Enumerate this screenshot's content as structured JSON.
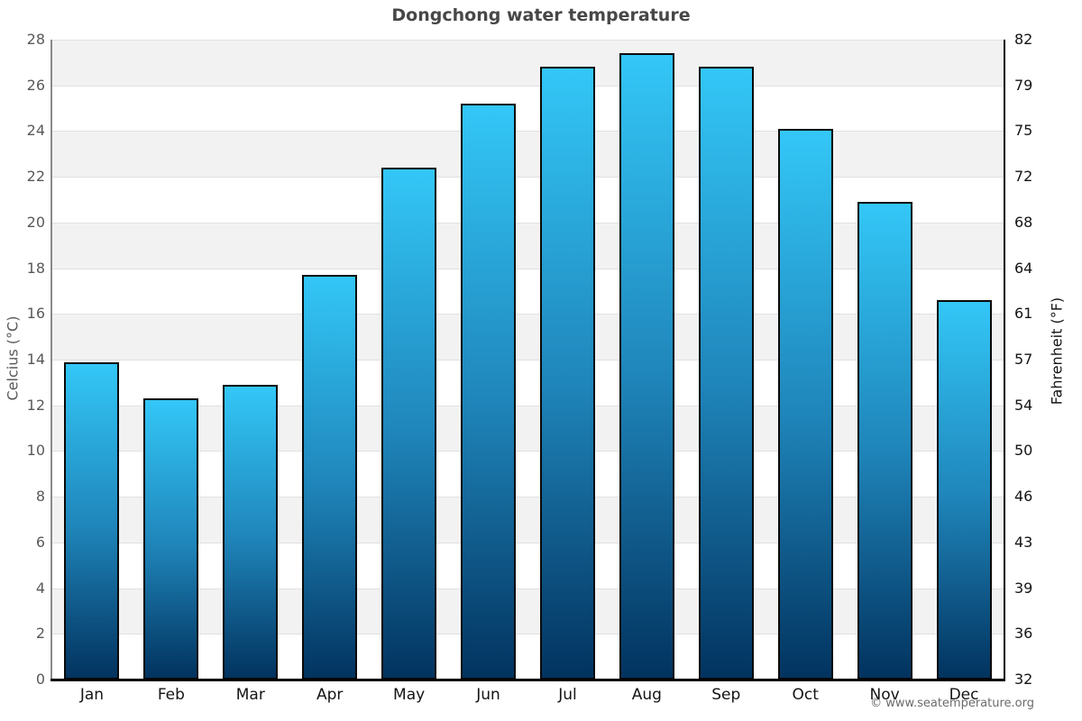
{
  "page": {
    "footer": "© www.seatemperature.org"
  },
  "chart_data": {
    "type": "bar",
    "title": "Dongchong water temperature",
    "categories": [
      "Jan",
      "Feb",
      "Mar",
      "Apr",
      "May",
      "Jun",
      "Jul",
      "Aug",
      "Sep",
      "Oct",
      "Nov",
      "Dec"
    ],
    "values": [
      13.9,
      12.3,
      12.9,
      17.7,
      22.4,
      25.2,
      26.8,
      27.4,
      26.8,
      24.1,
      20.9,
      16.6
    ],
    "xlabel": "",
    "ylabel_left": "Celcius (°C)",
    "ylabel_right": "Fahrenheit (°F)",
    "ylim_left": [
      0,
      28
    ],
    "ylim_right_labels": [
      32,
      82
    ],
    "yticks_left": [
      0,
      2,
      4,
      6,
      8,
      10,
      12,
      14,
      16,
      18,
      20,
      22,
      24,
      26,
      28
    ],
    "yticks_right_labels": [
      "32",
      "36",
      "39",
      "43",
      "46",
      "50",
      "54",
      "57",
      "61",
      "64",
      "68",
      "72",
      "75",
      "79",
      "82"
    ],
    "legend": "none",
    "grid": "alternating horizontal bands every 2°C, light gridlines at each tick",
    "colors": {
      "bar_gradient_top": "#33c7f7",
      "bar_gradient_mid": "#1f85ba",
      "bar_gradient_bottom": "#02335f",
      "bar_border": "#0a0a0a",
      "band_gray": "#f2f2f2",
      "gridline": "#e0e0e0",
      "title_text": "#474747",
      "left_axis_text": "#595959",
      "right_axis_text": "#141414",
      "footer_text": "#6b6b6b"
    }
  }
}
